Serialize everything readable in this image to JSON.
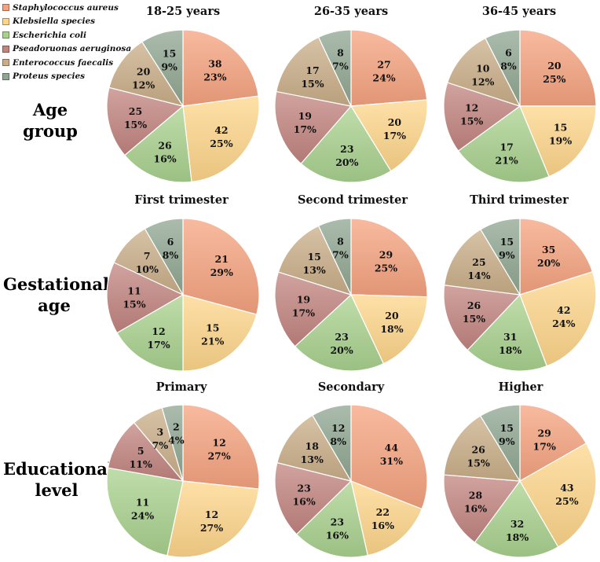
{
  "colors": [
    "#f5a37f",
    "#fdd58a",
    "#a9d18e",
    "#c1847f",
    "#c9ae88",
    "#8fa691"
  ],
  "legend": [
    {
      "label": "Staphylococcus aureus"
    },
    {
      "label": "Klebsiella species"
    },
    {
      "label": "Escherichia coli"
    },
    {
      "label": "Pseadoruonas aeruginosa"
    },
    {
      "label": "Enterococcus faecalis"
    },
    {
      "label": "Proteus species"
    }
  ],
  "rows": [
    {
      "label_line1": "Age group",
      "label_line2": ""
    },
    {
      "label_line1": "Gestational",
      "label_line2": "age"
    },
    {
      "label_line1": "Educational",
      "label_line2": "level"
    }
  ],
  "chart_data": [
    {
      "type": "pie",
      "title": "18-25 years",
      "categories": [
        "Staphylococcus aureus",
        "Klebsiella species",
        "Escherichia coli",
        "Pseadoruonas aeruginosa",
        "Enterococcus faecalis",
        "Proteus species"
      ],
      "values": [
        38,
        42,
        26,
        25,
        20,
        15
      ],
      "percents": [
        "23%",
        "25%",
        "16%",
        "15%",
        "12%",
        "9%"
      ]
    },
    {
      "type": "pie",
      "title": "26-35 years",
      "categories": [
        "Staphylococcus aureus",
        "Klebsiella species",
        "Escherichia coli",
        "Pseadoruonas aeruginosa",
        "Enterococcus faecalis",
        "Proteus species"
      ],
      "values": [
        27,
        20,
        23,
        19,
        17,
        8
      ],
      "percents": [
        "24%",
        "17%",
        "20%",
        "17%",
        "15%",
        "7%"
      ]
    },
    {
      "type": "pie",
      "title": "36-45 years",
      "categories": [
        "Staphylococcus aureus",
        "Klebsiella species",
        "Escherichia coli",
        "Pseadoruonas aeruginosa",
        "Enterococcus faecalis",
        "Proteus species"
      ],
      "values": [
        20,
        15,
        17,
        12,
        10,
        6
      ],
      "percents": [
        "25%",
        "19%",
        "21%",
        "15%",
        "12%",
        "8%"
      ]
    },
    {
      "type": "pie",
      "title": "First trimester",
      "categories": [
        "Staphylococcus aureus",
        "Klebsiella species",
        "Escherichia coli",
        "Pseadoruonas aeruginosa",
        "Enterococcus faecalis",
        "Proteus species"
      ],
      "values": [
        21,
        15,
        12,
        11,
        7,
        6
      ],
      "percents": [
        "29%",
        "21%",
        "17%",
        "15%",
        "10%",
        "8%"
      ]
    },
    {
      "type": "pie",
      "title": "Second trimester",
      "categories": [
        "Staphylococcus aureus",
        "Klebsiella species",
        "Escherichia coli",
        "Pseadoruonas aeruginosa",
        "Enterococcus faecalis",
        "Proteus species"
      ],
      "values": [
        29,
        20,
        23,
        19,
        15,
        8
      ],
      "percents": [
        "25%",
        "18%",
        "20%",
        "17%",
        "13%",
        "7%"
      ]
    },
    {
      "type": "pie",
      "title": "Third trimester",
      "categories": [
        "Staphylococcus aureus",
        "Klebsiella species",
        "Escherichia coli",
        "Pseadoruonas aeruginosa",
        "Enterococcus faecalis",
        "Proteus species"
      ],
      "values": [
        35,
        42,
        31,
        26,
        25,
        15
      ],
      "percents": [
        "20%",
        "24%",
        "18%",
        "15%",
        "14%",
        "9%"
      ]
    },
    {
      "type": "pie",
      "title": "Primary",
      "categories": [
        "Staphylococcus aureus",
        "Klebsiella species",
        "Escherichia coli",
        "Pseadoruonas aeruginosa",
        "Enterococcus faecalis",
        "Proteus species"
      ],
      "values": [
        12,
        12,
        11,
        5,
        3,
        2
      ],
      "percents": [
        "27%",
        "27%",
        "24%",
        "11%",
        "7%",
        "4%"
      ]
    },
    {
      "type": "pie",
      "title": "Secondary",
      "categories": [
        "Staphylococcus aureus",
        "Klebsiella species",
        "Escherichia coli",
        "Pseadoruonas aeruginosa",
        "Enterococcus faecalis",
        "Proteus species"
      ],
      "values": [
        44,
        22,
        23,
        23,
        18,
        12
      ],
      "percents": [
        "31%",
        "16%",
        "16%",
        "16%",
        "13%",
        "8%"
      ]
    },
    {
      "type": "pie",
      "title": "Higher",
      "categories": [
        "Staphylococcus aureus",
        "Klebsiella species",
        "Escherichia coli",
        "Pseadoruonas aeruginosa",
        "Enterococcus faecalis",
        "Proteus species"
      ],
      "values": [
        29,
        43,
        32,
        28,
        26,
        15
      ],
      "percents": [
        "17%",
        "25%",
        "18%",
        "16%",
        "15%",
        "9%"
      ]
    }
  ]
}
